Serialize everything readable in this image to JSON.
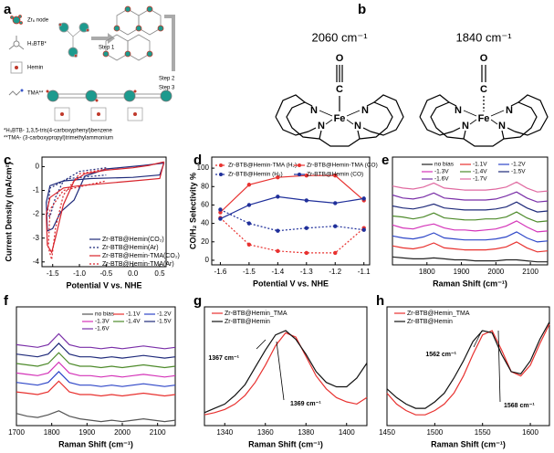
{
  "panel_a": {
    "label": "a",
    "legend": [
      "Zr₆ node",
      "H₃BTB*",
      "Hemin",
      "TMA**"
    ],
    "steps": [
      "Step 1",
      "Step 2",
      "Step 3"
    ],
    "footnotes": [
      "*H₃BTB- 1,3,5-tris(4-carboxyphenyl)benzene",
      "**TMA- (3-carboxypropyl)trimethylammonium"
    ]
  },
  "panel_b": {
    "label": "b",
    "molecules": [
      {
        "wavenumber": "2060 cm⁻¹",
        "atoms": [
          "O",
          "C",
          "Fe",
          "N",
          "N",
          "N",
          "N"
        ]
      },
      {
        "wavenumber": "1840 cm⁻¹",
        "atoms": [
          "O",
          "C",
          "Fe",
          "N",
          "N",
          "N",
          "N"
        ]
      }
    ]
  },
  "chart_data": [
    {
      "type": "line",
      "panel": "c",
      "xlabel": "Potential V vs. NHE",
      "ylabel": "Current Density (mA/cm²)",
      "xlim": [
        -1.7,
        0.62
      ],
      "xticks": [
        -1.5,
        {
          "value": -1.0,
          "label": "-1.0"
        },
        -0.5,
        {
          "value": 0.0,
          "label": "0.0"
        },
        0.5
      ],
      "ylim": [
        -4.2,
        0.4
      ],
      "yticks": [
        0,
        -1,
        -2,
        -3,
        -4
      ],
      "series": [
        {
          "name": "Zr-BTB@Hemin(CO₂)",
          "color": "#1f2a7a",
          "linestyle": "solid",
          "x": [
            0.58,
            0.2,
            -0.5,
            -0.9,
            -1.1,
            -1.2,
            -1.35,
            -1.5,
            -1.6,
            -1.62,
            -1.55,
            -1.3,
            -0.8,
            0,
            0.5,
            0.58
          ],
          "values": [
            0.15,
            0.05,
            -0.1,
            -0.4,
            -1.4,
            -1.6,
            -1.9,
            -2.6,
            -2.7,
            -1.5,
            -0.8,
            -0.6,
            -0.5,
            -0.45,
            -0.35,
            0.15
          ]
        },
        {
          "name": "Zr-BTB@Hemin(Ar)",
          "color": "#1f2a7a",
          "linestyle": "dotted",
          "x": [
            -0.5,
            -1.0,
            -1.3,
            -1.45,
            -1.55,
            -1.6,
            -1.55,
            -1.2,
            -0.5
          ],
          "values": [
            -0.05,
            -0.2,
            -0.6,
            -1.3,
            -2.1,
            -2.0,
            -0.9,
            -0.5,
            -0.35
          ]
        },
        {
          "name": "Zr-BTB@Hemin-TMA(CO₂)",
          "color": "#d8232a",
          "linestyle": "solid",
          "x": [
            0.58,
            0.3,
            0,
            -0.5,
            -0.9,
            -1.1,
            -1.3,
            -1.45,
            -1.52,
            -1.6,
            -1.62,
            -1.55,
            -1.3,
            -1.0,
            -0.5,
            0,
            0.5,
            0.58
          ],
          "values": [
            0.2,
            0.05,
            -0.05,
            -0.15,
            -0.3,
            -0.6,
            -1.6,
            -3.0,
            -3.6,
            -3.3,
            -2.0,
            -1.3,
            -0.9,
            -0.8,
            -0.7,
            -0.6,
            -0.5,
            0.2
          ]
        },
        {
          "name": "Zr-BTB@Hemin-TMA(Ar)",
          "color": "#d8232a",
          "linestyle": "dotted",
          "x": [
            -0.5,
            -1.0,
            -1.3,
            -1.45,
            -1.52,
            -1.58,
            -1.55,
            -1.3,
            -0.5
          ],
          "values": [
            -0.1,
            -0.3,
            -1.2,
            -2.6,
            -3.9,
            -3.4,
            -1.8,
            -1.0,
            -0.6
          ]
        }
      ]
    },
    {
      "type": "line",
      "panel": "d",
      "xlabel": "Potential V vs. NHE",
      "ylabel": "CO/H₂ Selectivity %",
      "xlim": [
        -1.63,
        -1.08
      ],
      "xticks": [
        -1.6,
        -1.5,
        -1.4,
        -1.3,
        -1.2,
        -1.1
      ],
      "ylim": [
        -5,
        112
      ],
      "yticks": [
        0,
        20,
        40,
        60,
        80,
        100
      ],
      "x": [
        -1.6,
        -1.5,
        -1.4,
        -1.3,
        -1.2,
        -1.1
      ],
      "series": [
        {
          "name": "Zr-BTB@Hemin-TMA (H₂)",
          "color": "#e8312f",
          "linestyle": "dotted",
          "marker": true,
          "values": [
            46,
            17,
            10,
            8,
            8,
            35
          ]
        },
        {
          "name": "Zr-BTB@Hemin-TMA (CO)",
          "color": "#e8312f",
          "linestyle": "solid",
          "marker": true,
          "values": [
            52,
            82,
            90,
            92,
            92,
            65
          ]
        },
        {
          "name": "Zr-BTB@Hemin (H₂)",
          "color": "#1f2f9a",
          "linestyle": "dotted",
          "marker": true,
          "values": [
            55,
            40,
            32,
            35,
            37,
            33
          ]
        },
        {
          "name": "Zr-BTB@Hemin (CO)",
          "color": "#1f2f9a",
          "linestyle": "solid",
          "marker": true,
          "values": [
            45,
            60,
            69,
            65,
            62,
            67
          ]
        }
      ]
    },
    {
      "type": "line",
      "panel": "e",
      "xlabel": "Raman Shift (cm⁻¹)",
      "xlim": [
        1700,
        2150
      ],
      "xticks": [
        1800,
        1900,
        2000,
        2100
      ],
      "ylim": [
        -0.3,
        10.5
      ],
      "x": [
        1700,
        1730,
        1760,
        1790,
        1820,
        1850,
        1880,
        1910,
        1940,
        1970,
        2000,
        2030,
        2060,
        2090,
        2120,
        2150
      ],
      "series": [
        {
          "name": "no bias",
          "color": "#222222",
          "values": [
            0.5,
            0.4,
            0.3,
            0.3,
            0.4,
            0.3,
            0.2,
            0.2,
            0.1,
            0.1,
            0.1,
            0.2,
            0.2,
            0.1,
            0.0,
            0.0
          ]
        },
        {
          "name": "-1.1V",
          "color": "#e8312f",
          "values": [
            1.6,
            1.4,
            1.3,
            1.5,
            1.9,
            1.4,
            1.3,
            1.2,
            1.2,
            1.2,
            1.3,
            1.5,
            2.0,
            1.4,
            1.0,
            1.1
          ]
        },
        {
          "name": "-1.2V",
          "color": "#2f47c8",
          "values": [
            2.6,
            2.4,
            2.3,
            2.5,
            2.9,
            2.4,
            2.3,
            2.2,
            2.2,
            2.2,
            2.3,
            2.5,
            3.0,
            2.4,
            2.0,
            2.1
          ]
        },
        {
          "name": "-1.3V",
          "color": "#d433b8",
          "values": [
            3.7,
            3.4,
            3.3,
            3.6,
            3.8,
            3.4,
            3.2,
            3.2,
            3.1,
            3.2,
            3.3,
            3.6,
            4.1,
            3.5,
            3.0,
            3.1
          ]
        },
        {
          "name": "-1.4V",
          "color": "#4d8a2a",
          "values": [
            4.6,
            4.5,
            4.3,
            4.5,
            4.9,
            4.4,
            4.3,
            4.2,
            4.2,
            4.3,
            4.3,
            4.5,
            5.0,
            4.4,
            4.0,
            4.1
          ]
        },
        {
          "name": "-1.5V",
          "color": "#1f2a7a",
          "values": [
            5.6,
            5.4,
            5.3,
            5.5,
            5.8,
            5.4,
            5.3,
            5.2,
            5.2,
            5.2,
            5.3,
            5.5,
            6.0,
            5.4,
            5.0,
            5.1
          ]
        },
        {
          "name": "-1.6V",
          "color": "#7a2fa8",
          "values": [
            6.7,
            6.4,
            6.3,
            6.5,
            6.9,
            6.4,
            6.3,
            6.2,
            6.2,
            6.2,
            6.3,
            6.6,
            7.0,
            6.4,
            6.0,
            6.1
          ]
        },
        {
          "name": "-1.7V",
          "color": "#e06aa0",
          "values": [
            7.6,
            7.4,
            7.3,
            7.5,
            7.9,
            7.4,
            7.3,
            7.2,
            7.2,
            7.2,
            7.3,
            7.5,
            8.0,
            7.4,
            7.0,
            7.1
          ]
        }
      ]
    },
    {
      "type": "line",
      "panel": "f",
      "xlabel": "Raman Shift (cm⁻¹)",
      "xlim": [
        1700,
        2150
      ],
      "xticks": [
        1700,
        1800,
        1900,
        2000,
        2100
      ],
      "ylim": [
        -0.3,
        8.5
      ],
      "x": [
        1700,
        1730,
        1760,
        1790,
        1820,
        1850,
        1880,
        1910,
        1940,
        1970,
        2000,
        2030,
        2060,
        2090,
        2120,
        2150
      ],
      "series": [
        {
          "name": "no bias",
          "color": "#555555",
          "values": [
            0.6,
            0.4,
            0.3,
            0.5,
            0.8,
            0.4,
            0.2,
            0.1,
            0.0,
            0.1,
            0.0,
            0.1,
            0.2,
            0.1,
            0.0,
            0.1
          ]
        },
        {
          "name": "-1.1V",
          "color": "#e8312f",
          "values": [
            2.2,
            2.1,
            2.0,
            2.2,
            3.0,
            2.2,
            2.0,
            2.0,
            1.9,
            2.0,
            1.9,
            2.0,
            2.1,
            2.0,
            1.9,
            2.0
          ]
        },
        {
          "name": "-1.2V",
          "color": "#2f47c8",
          "values": [
            2.9,
            2.8,
            2.7,
            2.9,
            3.7,
            2.9,
            2.7,
            2.7,
            2.6,
            2.7,
            2.6,
            2.7,
            2.8,
            2.7,
            2.6,
            2.7
          ]
        },
        {
          "name": "-1.3V",
          "color": "#d433b8",
          "values": [
            3.6,
            3.5,
            3.4,
            3.6,
            4.4,
            3.6,
            3.4,
            3.4,
            3.3,
            3.4,
            3.3,
            3.4,
            3.5,
            3.4,
            3.3,
            3.4
          ]
        },
        {
          "name": "-1.4V",
          "color": "#4d8a2a",
          "values": [
            4.3,
            4.2,
            4.1,
            4.3,
            5.1,
            4.3,
            4.1,
            4.1,
            4.0,
            4.1,
            4.0,
            4.1,
            4.2,
            4.1,
            4.0,
            4.1
          ]
        },
        {
          "name": "-1.5V",
          "color": "#1f2a7a",
          "values": [
            5.0,
            4.9,
            4.8,
            5.0,
            5.8,
            5.0,
            4.8,
            4.8,
            4.7,
            4.8,
            4.7,
            4.8,
            4.9,
            4.8,
            4.7,
            4.8
          ]
        },
        {
          "name": "-1.6V",
          "color": "#7a2fa8",
          "values": [
            5.7,
            5.6,
            5.5,
            5.7,
            6.5,
            5.7,
            5.5,
            5.5,
            5.4,
            5.5,
            5.4,
            5.5,
            5.6,
            5.5,
            5.4,
            5.5
          ]
        }
      ]
    },
    {
      "type": "line",
      "panel": "g",
      "xlabel": "Raman Shift (cm⁻¹)",
      "xlim": [
        1330,
        1410
      ],
      "xticks": [
        1340,
        1360,
        1380,
        1400
      ],
      "ylim": [
        0,
        11
      ],
      "x": [
        1330,
        1335,
        1340,
        1345,
        1350,
        1355,
        1360,
        1365,
        1370,
        1375,
        1380,
        1385,
        1390,
        1395,
        1400,
        1405,
        1410
      ],
      "series": [
        {
          "name": "Zr-BTB@Hemin_TMA",
          "color": "#e8312f",
          "values": [
            1.0,
            1.2,
            1.5,
            2.0,
            2.8,
            4.0,
            5.6,
            7.4,
            8.6,
            8.2,
            6.4,
            4.6,
            3.4,
            2.6,
            2.2,
            2.0,
            2.6
          ]
        },
        {
          "name": "Zr-BTB@Hemin",
          "color": "#111111",
          "values": [
            1.2,
            1.6,
            2.0,
            2.8,
            3.8,
            5.4,
            7.0,
            8.4,
            8.8,
            8.0,
            6.6,
            5.0,
            4.0,
            3.6,
            3.6,
            4.4,
            5.8
          ]
        }
      ],
      "annotations": [
        "1367 cm⁻¹",
        "1369 cm⁻¹"
      ]
    },
    {
      "type": "line",
      "panel": "h",
      "xlabel": "Raman Shift (cm⁻¹)",
      "xlim": [
        1450,
        1620
      ],
      "xticks": [
        1450,
        1500,
        1550,
        1600
      ],
      "ylim": [
        0,
        11
      ],
      "x": [
        1450,
        1460,
        1470,
        1480,
        1490,
        1500,
        1510,
        1520,
        1530,
        1540,
        1550,
        1560,
        1570,
        1580,
        1590,
        1600,
        1610,
        1620
      ],
      "series": [
        {
          "name": "Zr-BTB@Hemin_TMA",
          "color": "#e8312f",
          "values": [
            3.0,
            2.0,
            1.4,
            1.0,
            1.0,
            1.4,
            2.0,
            3.0,
            4.6,
            6.6,
            8.4,
            8.8,
            7.0,
            5.0,
            4.6,
            5.6,
            7.6,
            9.4
          ]
        },
        {
          "name": "Zr-BTB@Hemin",
          "color": "#111111",
          "values": [
            3.4,
            2.6,
            2.0,
            1.6,
            1.6,
            2.2,
            3.0,
            4.4,
            6.0,
            7.8,
            8.8,
            8.6,
            6.6,
            5.0,
            4.8,
            6.0,
            8.0,
            9.6
          ]
        }
      ],
      "annotations": [
        "1562 cm⁻¹",
        "1568 cm⁻¹"
      ]
    }
  ]
}
